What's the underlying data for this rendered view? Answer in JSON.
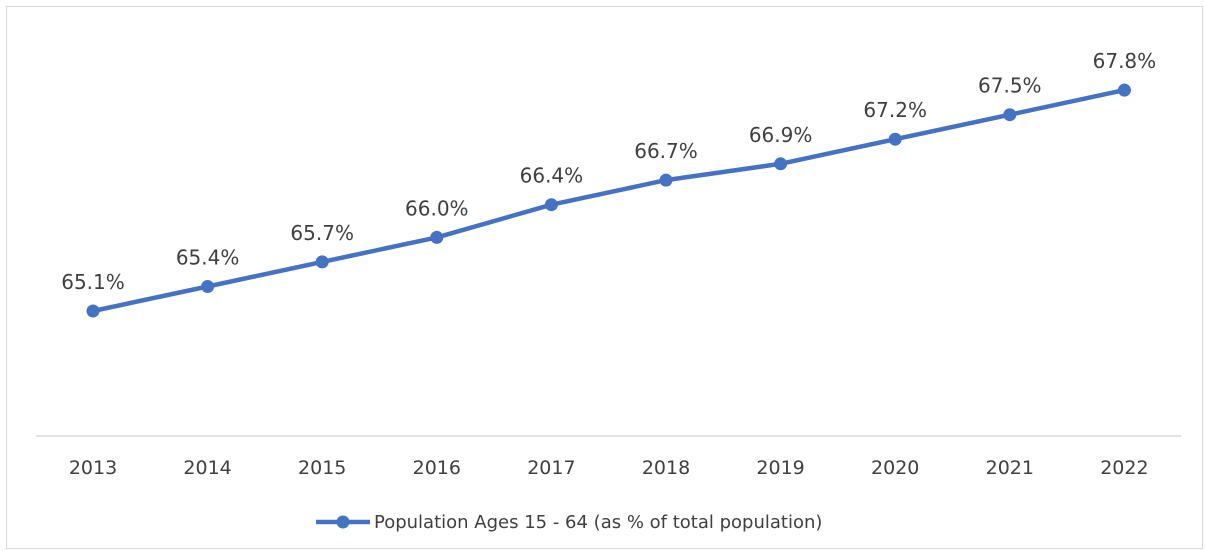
{
  "chart_data": {
    "type": "line",
    "categories": [
      "2013",
      "2014",
      "2015",
      "2016",
      "2017",
      "2018",
      "2019",
      "2020",
      "2021",
      "2022"
    ],
    "series": [
      {
        "name": "Population Ages 15 - 64 (as % of total population)",
        "values": [
          65.1,
          65.4,
          65.7,
          66.0,
          66.4,
          66.7,
          66.9,
          67.2,
          67.5,
          67.8
        ],
        "data_labels": [
          "65.1%",
          "65.4%",
          "65.7%",
          "66.0%",
          "66.4%",
          "66.7%",
          "66.9%",
          "67.2%",
          "67.5%",
          "67.8%"
        ]
      }
    ],
    "title": "",
    "xlabel": "",
    "ylabel": "",
    "y_axis_visible": false,
    "grid": false,
    "legend_position": "bottom",
    "colors": {
      "series": "#4472c4",
      "text": "#404040",
      "axis": "#d9d9d9"
    }
  }
}
